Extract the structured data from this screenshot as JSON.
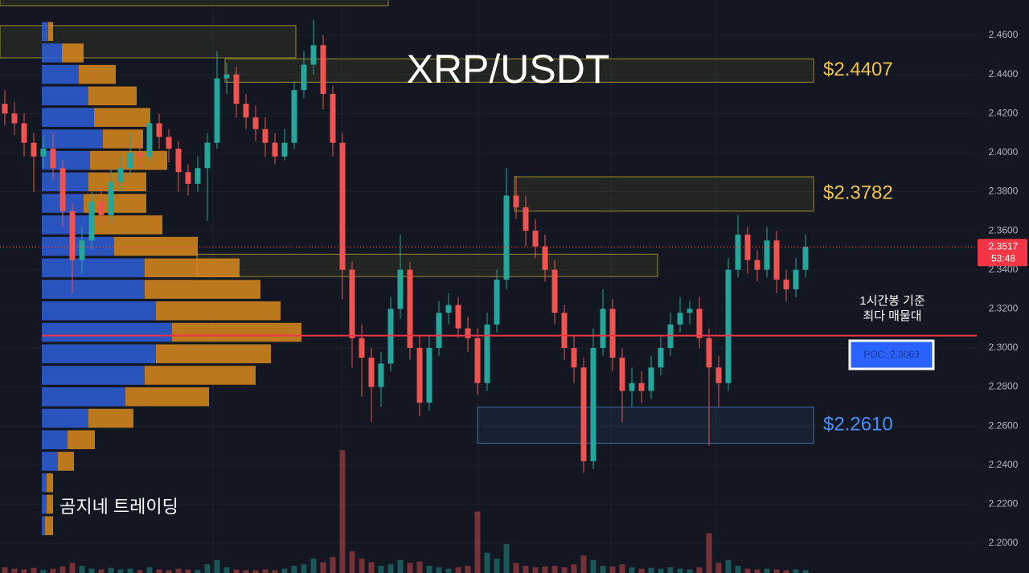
{
  "chart_data": {
    "type": "candlestick",
    "title": "XRP/USDT",
    "watermark": "곰지네 트레이딩",
    "annotation": [
      "1시간봉 기준",
      "최다 매물대"
    ],
    "ylim": [
      2.1848,
      2.4781
    ],
    "yticks": [
      {
        "value": 2.2,
        "label": "2.2000"
      },
      {
        "value": 2.22,
        "label": "2.2200"
      },
      {
        "value": 2.24,
        "label": "2.2400"
      },
      {
        "value": 2.26,
        "label": "2.2600"
      },
      {
        "value": 2.28,
        "label": "2.2800"
      },
      {
        "value": 2.3,
        "label": "2.3000"
      },
      {
        "value": 2.32,
        "label": "2.3200"
      },
      {
        "value": 2.34,
        "label": "2.3400"
      },
      {
        "value": 2.36,
        "label": "2.3600"
      },
      {
        "value": 2.38,
        "label": "2.3800"
      },
      {
        "value": 2.4,
        "label": "2.4000"
      },
      {
        "value": 2.42,
        "label": "2.4200"
      },
      {
        "value": 2.44,
        "label": "2.4400"
      },
      {
        "value": 2.46,
        "label": "2.4600"
      }
    ],
    "grid": true,
    "up_color": "#26a69a",
    "down_color": "#ef5350",
    "open": [
      2.425,
      2.42,
      2.415,
      2.405,
      2.398,
      2.402,
      2.392,
      2.37,
      2.345,
      2.355,
      2.375,
      2.368,
      2.385,
      2.392,
      2.4,
      2.398,
      2.415,
      2.408,
      2.402,
      2.39,
      2.384,
      2.392,
      2.405,
      2.438,
      2.44,
      2.425,
      2.418,
      2.412,
      2.405,
      2.398,
      2.405,
      2.432,
      2.445,
      2.455,
      2.43,
      2.405,
      2.34,
      2.305,
      2.295,
      2.28,
      2.292,
      2.32,
      2.34,
      2.3,
      2.272,
      2.3,
      2.318,
      2.322,
      2.31,
      2.305,
      2.282,
      2.312,
      2.335,
      2.378,
      2.372,
      2.36,
      2.352,
      2.34,
      2.318,
      2.3,
      2.29,
      2.242,
      2.3,
      2.32,
      2.295,
      2.278,
      2.282,
      2.278,
      2.29,
      2.3,
      2.312,
      2.318,
      2.32,
      2.305,
      2.29,
      2.282,
      2.34,
      2.358,
      2.345,
      2.34,
      2.355,
      2.335,
      2.33,
      2.34
    ],
    "high": [
      2.432,
      2.426,
      2.42,
      2.41,
      2.408,
      2.41,
      2.396,
      2.374,
      2.362,
      2.38,
      2.382,
      2.392,
      2.398,
      2.41,
      2.406,
      2.422,
      2.42,
      2.412,
      2.406,
      2.394,
      2.398,
      2.41,
      2.452,
      2.446,
      2.444,
      2.43,
      2.424,
      2.418,
      2.41,
      2.412,
      2.436,
      2.452,
      2.468,
      2.46,
      2.434,
      2.41,
      2.344,
      2.312,
      2.3,
      2.298,
      2.326,
      2.358,
      2.344,
      2.306,
      2.306,
      2.324,
      2.328,
      2.326,
      2.316,
      2.31,
      2.318,
      2.34,
      2.392,
      2.388,
      2.378,
      2.366,
      2.358,
      2.345,
      2.322,
      2.306,
      2.295,
      2.31,
      2.33,
      2.325,
      2.3,
      2.29,
      2.288,
      2.296,
      2.306,
      2.318,
      2.326,
      2.324,
      2.326,
      2.31,
      2.296,
      2.346,
      2.368,
      2.362,
      2.35,
      2.362,
      2.36,
      2.34,
      2.346,
      2.358
    ],
    "low": [
      2.414,
      2.409,
      2.398,
      2.38,
      2.392,
      2.386,
      2.362,
      2.328,
      2.338,
      2.35,
      2.362,
      2.364,
      2.38,
      2.388,
      2.392,
      2.395,
      2.402,
      2.395,
      2.38,
      2.378,
      2.38,
      2.365,
      2.402,
      2.43,
      2.418,
      2.412,
      2.406,
      2.398,
      2.394,
      2.396,
      2.402,
      2.428,
      2.44,
      2.422,
      2.398,
      2.325,
      2.29,
      2.275,
      2.262,
      2.27,
      2.288,
      2.315,
      2.294,
      2.265,
      2.268,
      2.296,
      2.312,
      2.305,
      2.298,
      2.276,
      2.278,
      2.308,
      2.33,
      2.366,
      2.352,
      2.346,
      2.334,
      2.312,
      2.294,
      2.282,
      2.236,
      2.238,
      2.296,
      2.288,
      2.262,
      2.27,
      2.272,
      2.274,
      2.286,
      2.296,
      2.308,
      2.312,
      2.3,
      2.25,
      2.27,
      2.278,
      2.336,
      2.338,
      2.334,
      2.336,
      2.328,
      2.324,
      2.326,
      2.336
    ],
    "close": [
      2.42,
      2.415,
      2.405,
      2.398,
      2.402,
      2.392,
      2.37,
      2.345,
      2.355,
      2.375,
      2.368,
      2.385,
      2.392,
      2.4,
      2.398,
      2.415,
      2.408,
      2.402,
      2.39,
      2.384,
      2.392,
      2.405,
      2.438,
      2.44,
      2.425,
      2.418,
      2.412,
      2.405,
      2.398,
      2.405,
      2.432,
      2.445,
      2.455,
      2.43,
      2.405,
      2.34,
      2.305,
      2.295,
      2.28,
      2.292,
      2.32,
      2.34,
      2.3,
      2.272,
      2.3,
      2.318,
      2.322,
      2.31,
      2.305,
      2.282,
      2.312,
      2.335,
      2.378,
      2.372,
      2.36,
      2.352,
      2.34,
      2.318,
      2.3,
      2.29,
      2.242,
      2.3,
      2.32,
      2.295,
      2.278,
      2.282,
      2.278,
      2.29,
      2.3,
      2.312,
      2.318,
      2.32,
      2.305,
      2.29,
      2.282,
      2.34,
      2.358,
      2.345,
      2.34,
      2.355,
      2.335,
      2.33,
      2.34,
      2.3517
    ],
    "volume": [
      8,
      6,
      5,
      7,
      4,
      6,
      9,
      14,
      10,
      6,
      5,
      7,
      5,
      6,
      4,
      8,
      5,
      4,
      6,
      5,
      4,
      12,
      18,
      8,
      5,
      4,
      4,
      5,
      4,
      6,
      10,
      12,
      20,
      15,
      22,
      170,
      30,
      20,
      15,
      10,
      12,
      18,
      14,
      16,
      10,
      8,
      6,
      8,
      10,
      85,
      28,
      20,
      40,
      14,
      10,
      8,
      9,
      10,
      8,
      12,
      24,
      18,
      10,
      9,
      12,
      8,
      6,
      7,
      6,
      8,
      6,
      5,
      8,
      55,
      14,
      18,
      10,
      6,
      5,
      6,
      5,
      4,
      5,
      4
    ],
    "countdown": "53:48",
    "poc": {
      "value": 2.3063,
      "label": "POC: 2.3063"
    },
    "poc_color": "#f23645",
    "profile": {
      "buy_color": "#2f5fd8",
      "sell_color": "#d98a1c",
      "prices": [
        2.462,
        2.451,
        2.44,
        2.429,
        2.418,
        2.407,
        2.396,
        2.385,
        2.374,
        2.363,
        2.352,
        2.341,
        2.33,
        2.319,
        2.308,
        2.297,
        2.286,
        2.275,
        2.264,
        2.253,
        2.242,
        2.231,
        2.22,
        2.209
      ],
      "buy": [
        8,
        25,
        46,
        58,
        65,
        76,
        60,
        58,
        52,
        65,
        90,
        128,
        128,
        142,
        162,
        142,
        128,
        104,
        58,
        32,
        20,
        6,
        6,
        4
      ],
      "sell": [
        6,
        27,
        46,
        60,
        70,
        50,
        96,
        72,
        78,
        85,
        104,
        118,
        144,
        155,
        161,
        143,
        138,
        104,
        56,
        34,
        20,
        8,
        8,
        10
      ]
    },
    "zones": [
      {
        "low": 2.4752,
        "high": 2.49,
        "color": "#9a8a2e"
      },
      {
        "low": 2.4485,
        "high": 2.465,
        "color": "#9a8a2e"
      },
      {
        "low": 2.436,
        "high": 2.448,
        "color": "#9a8a2e",
        "label": "$2.4407",
        "label_color": "#f0c24a"
      },
      {
        "low": 2.37,
        "high": 2.3876,
        "color": "#9a8a2e",
        "label": "$2.3782",
        "label_color": "#f0c24a"
      },
      {
        "low": 2.3365,
        "high": 2.348,
        "color": "#9a8a2e"
      },
      {
        "low": 2.2512,
        "high": 2.2697,
        "color": "#3d6fa8",
        "label": "$2.2610",
        "label_color": "#4b8ff5"
      }
    ]
  }
}
